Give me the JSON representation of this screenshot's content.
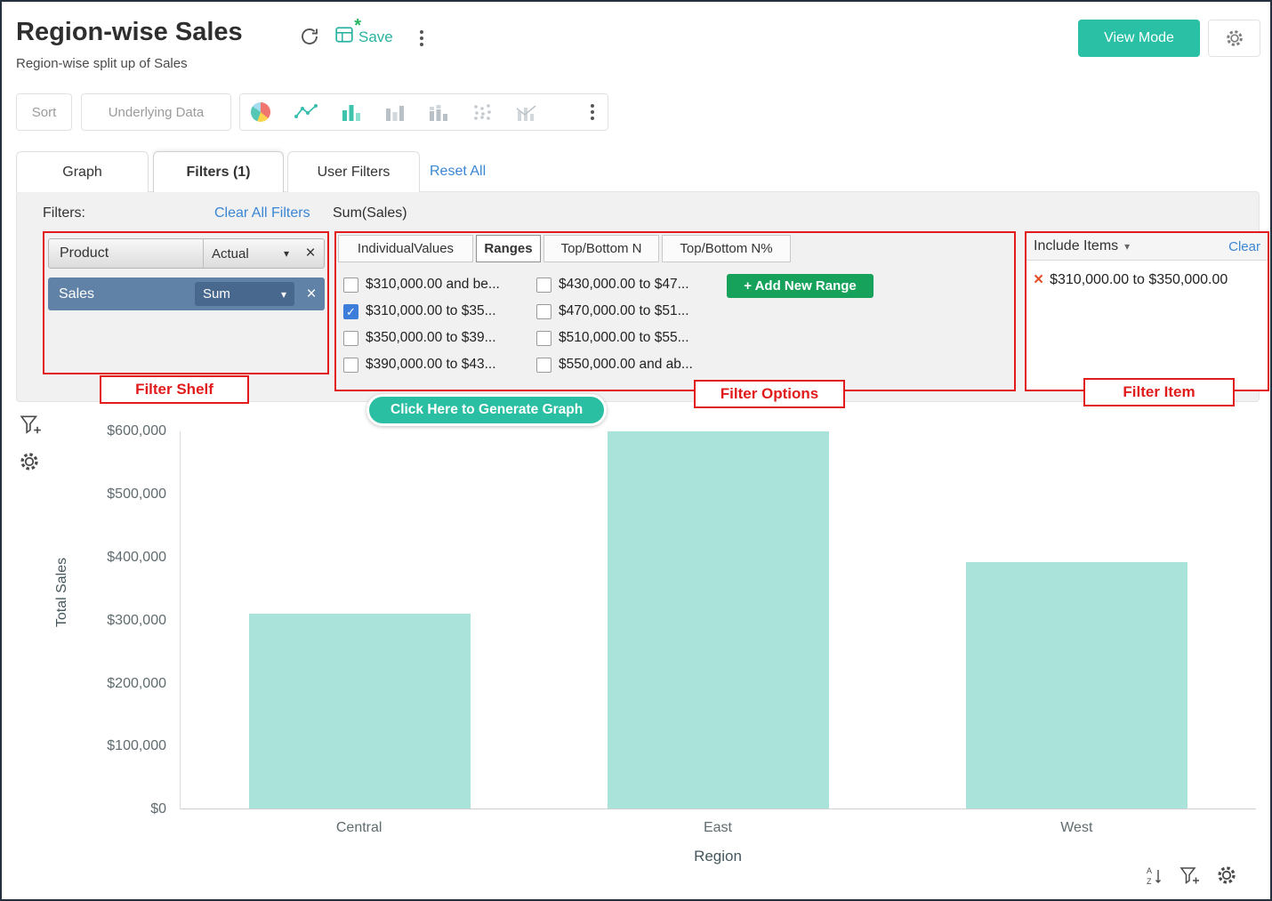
{
  "header": {
    "title": "Region-wise Sales",
    "subtitle": "Region-wise split up of Sales",
    "save_label": "Save",
    "save_asterisk": "*",
    "view_mode_label": "View Mode"
  },
  "toolbar": {
    "sort_label": "Sort",
    "underlying_data_label": "Underlying Data"
  },
  "tabs": {
    "graph": "Graph",
    "filters": "Filters  (1)",
    "user_filters": "User Filters",
    "reset_all": "Reset All"
  },
  "filter_panel": {
    "filters_label": "Filters:",
    "clear_all_label": "Clear All Filters",
    "summary_label": "Sum(Sales)",
    "shelf": {
      "annotation": "Filter Shelf",
      "product": {
        "name": "Product",
        "mode": "Actual",
        "remove": "×"
      },
      "sales": {
        "name": "Sales",
        "mode": "Sum",
        "remove": "×"
      }
    },
    "options": {
      "annotation": "Filter Options",
      "tabs": [
        {
          "label": "IndividualValues",
          "active": false
        },
        {
          "label": "Ranges",
          "active": true
        },
        {
          "label": "Top/Bottom N",
          "active": false
        },
        {
          "label": "Top/Bottom N%",
          "active": false
        }
      ],
      "add_new_range_label": "+  Add New Range",
      "ranges_col1": [
        {
          "label": "$310,000.00 and be...",
          "checked": false
        },
        {
          "label": "$310,000.00 to $35...",
          "checked": true
        },
        {
          "label": "$350,000.00 to $39...",
          "checked": false
        },
        {
          "label": "$390,000.00 to $43...",
          "checked": false
        }
      ],
      "ranges_col2": [
        {
          "label": "$430,000.00 to $47...",
          "checked": false
        },
        {
          "label": "$470,000.00 to $51...",
          "checked": false
        },
        {
          "label": "$510,000.00 to $55...",
          "checked": false
        },
        {
          "label": "$550,000.00 and ab...",
          "checked": false
        }
      ]
    },
    "include_items": {
      "annotation": "Filter Item",
      "title": "Include Items",
      "clear_label": "Clear",
      "remove_icon": "×",
      "items": [
        "$310,000.00 to $350,000.00"
      ]
    }
  },
  "generate_button_label": "Click Here to Generate Graph",
  "chart_data": {
    "type": "bar",
    "categories": [
      "Central",
      "East",
      "West"
    ],
    "values": [
      310000,
      600000,
      392000
    ],
    "title": "",
    "xlabel": "Region",
    "ylabel": "Total Sales",
    "ylim": [
      0,
      600000
    ],
    "ytick_labels": [
      "$600,000",
      "$500,000",
      "$400,000",
      "$300,000",
      "$200,000",
      "$100,000",
      "$0"
    ],
    "bar_color": "#a9e3da",
    "grid": false,
    "legend": "none"
  },
  "colors": {
    "accent_teal": "#29c0a5",
    "accent_green": "#16a25a",
    "link_blue": "#3a86d4",
    "annotation_red": "#e11b1b",
    "sales_pill_blue": "#6082a6",
    "bar_fill": "#a9e3da"
  }
}
